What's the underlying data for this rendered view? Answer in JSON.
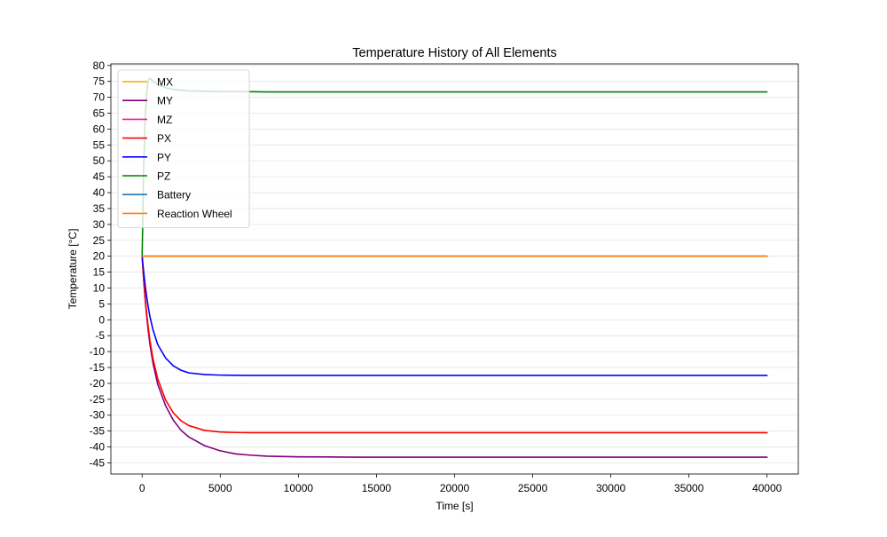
{
  "chart_data": {
    "type": "line",
    "title": "Temperature History of All Elements",
    "xlabel": "Time [s]",
    "ylabel": "Temperature [°C]",
    "xlim": [
      -2000,
      42000
    ],
    "ylim": [
      -48.5,
      80.5
    ],
    "xticks": [
      0,
      5000,
      10000,
      15000,
      20000,
      25000,
      30000,
      35000,
      40000
    ],
    "yticks": [
      -45,
      -40,
      -35,
      -30,
      -25,
      -20,
      -15,
      -10,
      -5,
      0,
      5,
      10,
      15,
      20,
      25,
      30,
      35,
      40,
      45,
      50,
      55,
      60,
      65,
      70,
      75,
      80
    ],
    "grid": "horizontal",
    "legend_position": "top-left",
    "x": [
      0,
      100,
      200,
      300,
      400,
      500,
      700,
      1000,
      1500,
      2000,
      2500,
      3000,
      4000,
      5000,
      6000,
      7000,
      8000,
      9000,
      10000,
      12000,
      14000,
      16000,
      18000,
      20000,
      25000,
      30000,
      35000,
      40000
    ],
    "series": [
      {
        "name": "MX",
        "color": "#ffa500",
        "values": [
          20,
          20,
          20,
          20,
          20,
          20,
          20,
          20,
          20,
          20,
          20,
          20,
          20,
          20,
          20,
          20,
          20,
          20,
          20,
          20,
          20,
          20,
          20,
          20,
          20,
          20,
          20,
          20
        ]
      },
      {
        "name": "MY",
        "color": "#800080",
        "values": [
          20,
          12.5,
          6.0,
          0.8,
          -3.8,
          -7.7,
          -13.8,
          -20.3,
          -27.0,
          -31.6,
          -34.8,
          -36.9,
          -39.6,
          -41.2,
          -42.2,
          -42.6,
          -42.9,
          -43.0,
          -43.1,
          -43.15,
          -43.2,
          -43.2,
          -43.2,
          -43.2,
          -43.2,
          -43.2,
          -43.2,
          -43.2
        ]
      },
      {
        "name": "MZ",
        "color": "#ff1493",
        "values": [
          20,
          20,
          20,
          20,
          20,
          20,
          20,
          20,
          20,
          20,
          20,
          20,
          20,
          20,
          20,
          20,
          20,
          20,
          20,
          20,
          20,
          20,
          20,
          20,
          20,
          20,
          20,
          20
        ]
      },
      {
        "name": "PX",
        "color": "#ff0000",
        "values": [
          20,
          12.8,
          6.7,
          1.6,
          -2.7,
          -6.5,
          -12.4,
          -18.6,
          -25.2,
          -29.3,
          -31.8,
          -33.3,
          -34.8,
          -35.3,
          -35.45,
          -35.5,
          -35.5,
          -35.5,
          -35.5,
          -35.5,
          -35.5,
          -35.5,
          -35.5,
          -35.5,
          -35.5,
          -35.5,
          -35.5,
          -35.5
        ]
      },
      {
        "name": "PY",
        "color": "#0000ff",
        "values": [
          20,
          15.0,
          10.6,
          7.0,
          3.8,
          1.0,
          -3.2,
          -7.8,
          -12.0,
          -14.5,
          -15.9,
          -16.7,
          -17.2,
          -17.4,
          -17.45,
          -17.5,
          -17.5,
          -17.5,
          -17.5,
          -17.5,
          -17.5,
          -17.5,
          -17.5,
          -17.5,
          -17.5,
          -17.5,
          -17.5,
          -17.5
        ]
      },
      {
        "name": "PZ",
        "color": "#008000",
        "values": [
          20,
          48,
          64,
          72,
          75.5,
          76.0,
          75.0,
          74.0,
          73.0,
          72.5,
          72.2,
          72.0,
          71.9,
          71.8,
          71.8,
          71.75,
          71.7,
          71.7,
          71.7,
          71.7,
          71.7,
          71.7,
          71.7,
          71.7,
          71.7,
          71.7,
          71.7,
          71.7
        ]
      },
      {
        "name": "Battery",
        "color": "#1f77b4",
        "values": [
          20,
          20,
          20,
          20,
          20,
          20,
          20,
          20,
          20,
          20,
          20,
          20,
          20,
          20,
          20,
          20,
          20,
          20,
          20,
          20,
          20,
          20,
          20,
          20,
          20,
          20,
          20,
          20
        ]
      },
      {
        "name": "Reaction Wheel",
        "color": "#ff7f0e",
        "values": [
          20,
          20,
          20,
          20,
          20,
          20,
          20,
          20,
          20,
          20,
          20,
          20,
          20,
          20,
          20,
          20,
          20,
          20,
          20,
          20,
          20,
          20,
          20,
          20,
          20,
          20,
          20,
          20
        ]
      }
    ]
  }
}
